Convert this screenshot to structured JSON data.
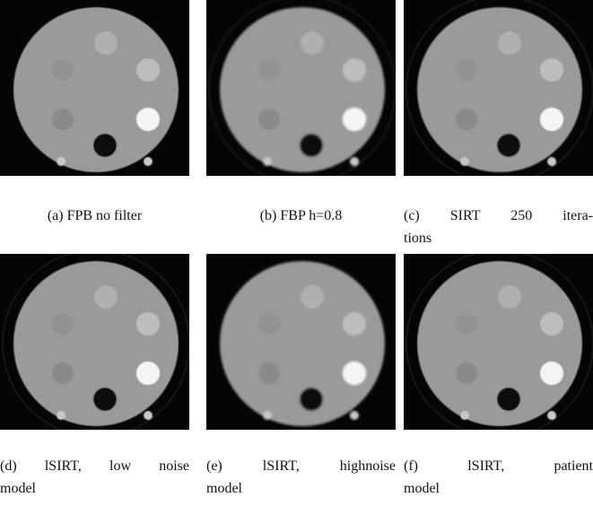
{
  "panels": [
    {
      "caption": [
        "(a) FPB no filter"
      ]
    },
    {
      "caption": [
        "(b) FBP h=0.8"
      ]
    },
    {
      "caption": [
        "(c) SIRT 250 itera-",
        "tions"
      ]
    },
    {
      "caption": [
        "(d) lSIRT, low noise",
        "model"
      ]
    },
    {
      "caption": [
        "(e) lSIRT, highnoise",
        "model"
      ]
    },
    {
      "caption": [
        "(f) lSIRT, patient",
        "model"
      ]
    }
  ]
}
